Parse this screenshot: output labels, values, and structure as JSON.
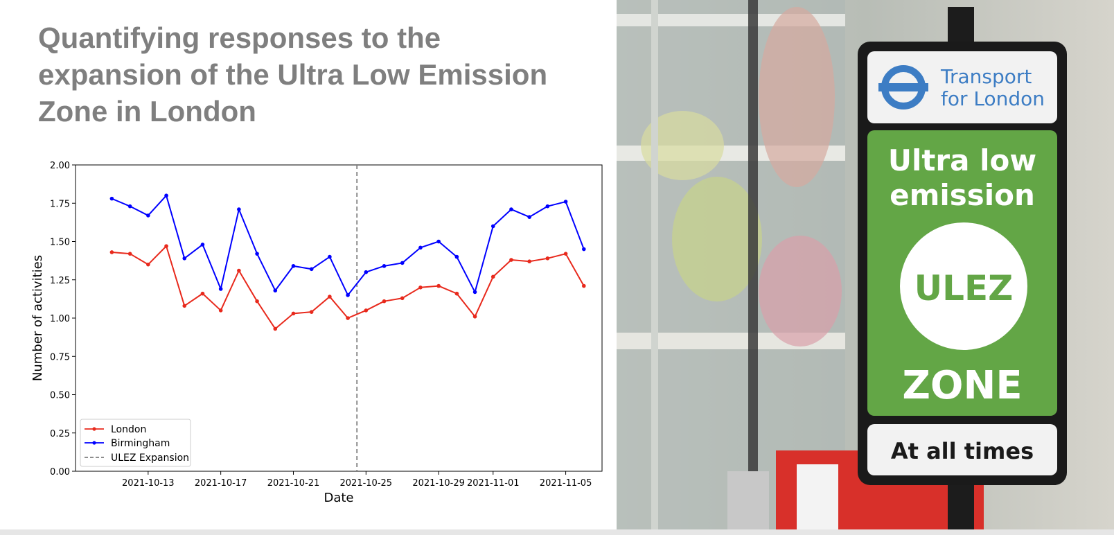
{
  "slide": {
    "title": "Quantifying responses to the expansion of the Ultra Low Emission Zone in London"
  },
  "chart_data": {
    "type": "line",
    "title": "",
    "xlabel": "Date",
    "ylabel": "Number of activities",
    "x_start": "2021-10-11",
    "x": [
      "2021-10-11",
      "2021-10-12",
      "2021-10-13",
      "2021-10-14",
      "2021-10-15",
      "2021-10-16",
      "2021-10-17",
      "2021-10-18",
      "2021-10-19",
      "2021-10-20",
      "2021-10-21",
      "2021-10-22",
      "2021-10-23",
      "2021-10-24",
      "2021-10-25",
      "2021-10-26",
      "2021-10-27",
      "2021-10-28",
      "2021-10-29",
      "2021-10-30",
      "2021-10-31",
      "2021-11-01",
      "2021-11-02",
      "2021-11-03",
      "2021-11-04",
      "2021-11-05",
      "2021-11-06"
    ],
    "xlim": [
      "2021-10-09",
      "2021-11-07"
    ],
    "xticks": [
      "2021-10-13",
      "2021-10-17",
      "2021-10-21",
      "2021-10-25",
      "2021-10-29",
      "2021-11-01",
      "2021-11-05"
    ],
    "ylim": [
      0,
      2.0
    ],
    "yticks": [
      "0.00",
      "0.25",
      "0.50",
      "0.75",
      "1.00",
      "1.25",
      "1.50",
      "1.75",
      "2.00"
    ],
    "grid": false,
    "legend_position": "lower-left",
    "series": [
      {
        "name": "London",
        "color": "#e8291c",
        "values": [
          1.43,
          1.42,
          1.35,
          1.47,
          1.08,
          1.16,
          1.05,
          1.31,
          1.11,
          0.93,
          1.03,
          1.04,
          1.14,
          1.0,
          1.05,
          1.11,
          1.13,
          1.2,
          1.21,
          1.16,
          1.01,
          1.27,
          1.38,
          1.37,
          1.39,
          1.42,
          1.21
        ]
      },
      {
        "name": "Birmingham",
        "color": "#0000ff",
        "values": [
          1.78,
          1.73,
          1.67,
          1.8,
          1.39,
          1.48,
          1.19,
          1.71,
          1.42,
          1.18,
          1.34,
          1.32,
          1.4,
          1.15,
          1.3,
          1.34,
          1.36,
          1.46,
          1.5,
          1.4,
          1.17,
          1.6,
          1.71,
          1.66,
          1.73,
          1.76,
          1.45
        ]
      }
    ],
    "vline": {
      "name": "ULEZ Expansion",
      "x": "2021-10-24.5",
      "color": "#7f7f7f"
    }
  },
  "photo": {
    "sign_header_line1": "Transport",
    "sign_header_line2": "for London",
    "sign_line1": "Ultra low",
    "sign_line2": "emission",
    "sign_circle": "ULEZ",
    "sign_zone": "ZONE",
    "sign_footer": "At all times",
    "colors": {
      "sign_green": "#63a646",
      "tfl_blue": "#3d7dc4",
      "sign_frame": "#1a1a1a"
    }
  }
}
